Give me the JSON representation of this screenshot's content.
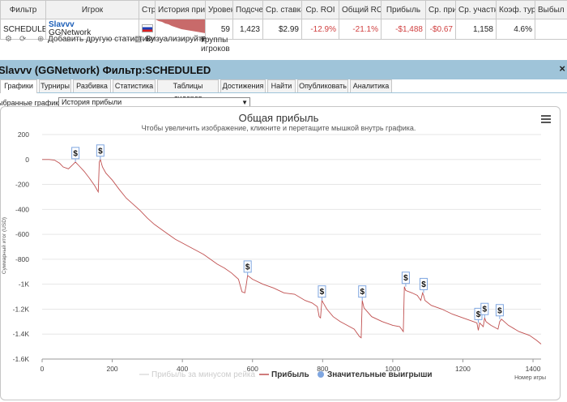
{
  "table": {
    "headers": [
      "Фильтр",
      "Игрок",
      "Стр",
      "История приб",
      "Уровен",
      "Подсчет",
      "Ср. ставка",
      "Ср. ROI",
      "Общий ROI",
      "Прибыль",
      "Ср. при",
      "Ср. участн",
      "Коэф. тур",
      "Выбыл р"
    ],
    "row": {
      "filter": "SCHEDULED",
      "player_name": "Slavvv",
      "player_network": "GGNetwork",
      "level": "59",
      "count": "1,423",
      "avg_stake": "$2.99",
      "avg_roi": "-12.9%",
      "total_roi": "-21.1%",
      "profit": "-$1,488",
      "avg_profit": "-$0.67",
      "avg_entrants": "1,158",
      "itm": "4.6%",
      "knocked": ""
    }
  },
  "toolbar": {
    "add_stat": "Добавить другую статистику",
    "visualize": "Визуализируйте",
    "player_groups": "Группы игроков"
  },
  "panel": {
    "title": "Slavvv (GGNetwork) Фильтр:SCHEDULED",
    "tabs": [
      "Графики",
      "Турниры",
      "Разбивка",
      "Статистика",
      "Таблицы лидеров",
      "Достижения",
      "Найти",
      "Опубликовать",
      "Аналитика"
    ],
    "selected_label": "ыбранные графики:",
    "selected_value": "История прибыли"
  },
  "chart_data": {
    "type": "line",
    "title": "Общая прибыль",
    "subtitle": "Чтобы увеличить изображение, кликните и перетащите мышкой внутрь графика.",
    "ylabel": "Суммарный итог (USD)",
    "xlabel": "Номер игры",
    "xlim": [
      0,
      1423
    ],
    "ylim": [
      -1600,
      200
    ],
    "x_ticks": [
      0,
      200,
      400,
      600,
      800,
      1000,
      1200,
      1400
    ],
    "y_ticks": [
      {
        "value": 200,
        "label": "200"
      },
      {
        "value": 0,
        "label": "0"
      },
      {
        "value": -200,
        "label": "-200"
      },
      {
        "value": -400,
        "label": "-400"
      },
      {
        "value": -600,
        "label": "-600"
      },
      {
        "value": -800,
        "label": "-800"
      },
      {
        "value": -1000,
        "label": "-1K"
      },
      {
        "value": -1200,
        "label": "-1.2K"
      },
      {
        "value": -1400,
        "label": "-1.4K"
      },
      {
        "value": -1600,
        "label": "-1.6K"
      }
    ],
    "grid": true,
    "legend_position": "bottom",
    "legend": [
      {
        "name": "Прибыль за минусом рейка",
        "color": "#dddddd"
      },
      {
        "name": "Прибыль",
        "color": "#c05050"
      },
      {
        "name": "Значительные выигрыши",
        "color": "#7fa6e0"
      }
    ],
    "series": [
      {
        "name": "Прибыль",
        "color": "#c05050",
        "x": [
          0,
          20,
          35,
          50,
          60,
          75,
          88,
          95,
          105,
          120,
          135,
          150,
          160,
          163,
          166,
          172,
          182,
          200,
          220,
          240,
          260,
          280,
          300,
          320,
          340,
          360,
          380,
          400,
          420,
          440,
          460,
          480,
          500,
          520,
          540,
          560,
          570,
          578,
          582,
          586,
          600,
          630,
          660,
          690,
          720,
          750,
          770,
          785,
          790,
          794,
          798,
          812,
          830,
          850,
          870,
          890,
          905,
          910,
          913,
          918,
          940,
          970,
          1000,
          1020,
          1030,
          1033,
          1037,
          1055,
          1070,
          1080,
          1085,
          1088,
          1092,
          1110,
          1140,
          1170,
          1200,
          1230,
          1240,
          1244,
          1248,
          1258,
          1262,
          1266,
          1280,
          1300,
          1305,
          1310,
          1330,
          1360,
          1390,
          1410,
          1423
        ],
        "y": [
          0,
          0,
          -5,
          -30,
          -60,
          -75,
          -40,
          -20,
          -50,
          -95,
          -150,
          -210,
          -260,
          -20,
          0,
          -60,
          -110,
          -165,
          -240,
          -310,
          -360,
          -410,
          -470,
          -520,
          -560,
          -600,
          -640,
          -670,
          -700,
          -730,
          -760,
          -800,
          -840,
          -870,
          -910,
          -960,
          -1060,
          -1070,
          -1010,
          -930,
          -960,
          -1000,
          -1030,
          -1070,
          -1080,
          -1130,
          -1150,
          -1180,
          -1260,
          -1270,
          -1130,
          -1200,
          -1260,
          -1300,
          -1330,
          -1360,
          -1420,
          -1430,
          -1130,
          -1190,
          -1260,
          -1300,
          -1330,
          -1340,
          -1380,
          -1020,
          -1050,
          -1070,
          -1090,
          -1130,
          -1070,
          -1090,
          -1130,
          -1170,
          -1200,
          -1240,
          -1270,
          -1300,
          -1310,
          -1370,
          -1310,
          -1340,
          -1270,
          -1300,
          -1330,
          -1360,
          -1300,
          -1280,
          -1330,
          -1380,
          -1410,
          -1450,
          -1480
        ]
      }
    ],
    "markers": [
      {
        "x": 95,
        "y": -20
      },
      {
        "x": 166,
        "y": 0
      },
      {
        "x": 586,
        "y": -930
      },
      {
        "x": 798,
        "y": -1130
      },
      {
        "x": 913,
        "y": -1130
      },
      {
        "x": 1037,
        "y": -1020
      },
      {
        "x": 1088,
        "y": -1070
      },
      {
        "x": 1244,
        "y": -1310
      },
      {
        "x": 1262,
        "y": -1270
      },
      {
        "x": 1305,
        "y": -1280
      }
    ],
    "marker_symbol": "$"
  }
}
